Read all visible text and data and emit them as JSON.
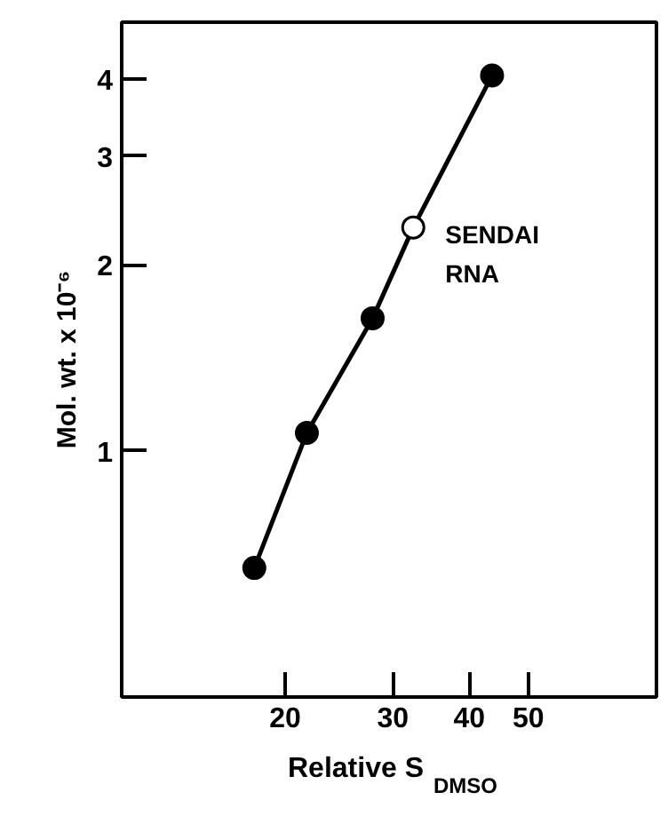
{
  "chart_data": {
    "type": "scatter",
    "xlabel": "Relative S$_{DMSO}$",
    "ylabel": "Mol. wt. x 10⁻⁶",
    "log": "xy",
    "xlim": [
      10.8,
      81
    ],
    "ylim": [
      0.4,
      4.94
    ],
    "xticks": [
      20,
      30,
      40,
      50
    ],
    "yticks": [
      1,
      2,
      3,
      4
    ],
    "grid": false,
    "marker": "circle",
    "series": [
      {
        "type": "line",
        "color": "#000000",
        "x": [
          17.8,
          21.7,
          27.8,
          32.4,
          43.6
        ],
        "values": [
          0.647,
          1.07,
          1.64,
          2.3,
          4.05
        ],
        "marker": "none"
      },
      {
        "color": "#000000",
        "x": [
          17.8,
          21.7,
          27.8,
          43.6
        ],
        "values": [
          0.647,
          1.07,
          1.64,
          4.05
        ]
      },
      {
        "type": "scatter",
        "color": "#ffffff",
        "x": [
          32.4
        ],
        "values": [
          2.3
        ]
      }
    ],
    "annotations": [
      {
        "text": "SENDAI\nRNA",
        "x": 32.4,
        "y": 2.3
      }
    ]
  }
}
